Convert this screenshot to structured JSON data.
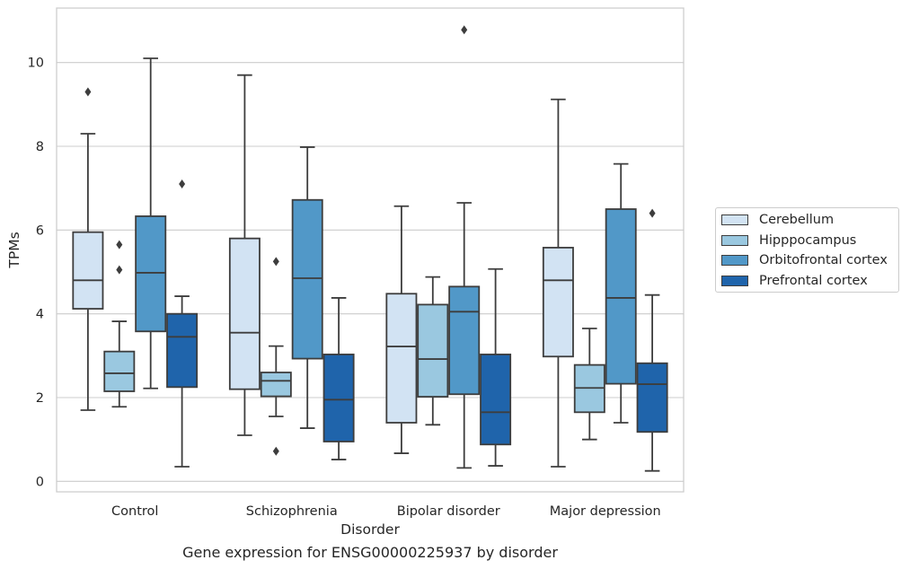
{
  "chart_data": {
    "type": "boxplot",
    "title": "Gene expression for ENSG00000225937 by disorder",
    "xlabel": "Disorder",
    "ylabel": "TPMs",
    "ylim": [
      -0.25,
      11.3
    ],
    "yticks": [
      0,
      2,
      4,
      6,
      8,
      10
    ],
    "grid": true,
    "legend_position": "right",
    "categories": [
      "Control",
      "Schizophrenia",
      "Bipolar disorder",
      "Major depression"
    ],
    "series": [
      {
        "name": "Cerebellum",
        "color": "#d2e3f3",
        "boxes": [
          {
            "whislo": 1.7,
            "q1": 4.12,
            "med": 4.8,
            "q3": 5.95,
            "whishi": 8.3,
            "fliers": [
              9.3
            ]
          },
          {
            "whislo": 1.1,
            "q1": 2.2,
            "med": 3.55,
            "q3": 5.8,
            "whishi": 9.7,
            "fliers": []
          },
          {
            "whislo": 0.67,
            "q1": 1.4,
            "med": 3.22,
            "q3": 4.48,
            "whishi": 6.57,
            "fliers": []
          },
          {
            "whislo": 0.35,
            "q1": 2.98,
            "med": 4.8,
            "q3": 5.58,
            "whishi": 9.12,
            "fliers": []
          }
        ]
      },
      {
        "name": "Hipppocampus",
        "color": "#9ac8e0",
        "boxes": [
          {
            "whislo": 1.78,
            "q1": 2.15,
            "med": 2.58,
            "q3": 3.1,
            "whishi": 3.82,
            "fliers": [
              5.65,
              5.05
            ]
          },
          {
            "whislo": 1.55,
            "q1": 2.03,
            "med": 2.4,
            "q3": 2.6,
            "whishi": 3.23,
            "fliers": [
              5.25,
              0.72
            ]
          },
          {
            "whislo": 1.35,
            "q1": 2.02,
            "med": 2.92,
            "q3": 4.22,
            "whishi": 4.88,
            "fliers": []
          },
          {
            "whislo": 1.0,
            "q1": 1.65,
            "med": 2.23,
            "q3": 2.78,
            "whishi": 3.65,
            "fliers": []
          }
        ]
      },
      {
        "name": "Orbitofrontal cortex",
        "color": "#5198c8",
        "boxes": [
          {
            "whislo": 2.22,
            "q1": 3.58,
            "med": 4.98,
            "q3": 6.33,
            "whishi": 10.1,
            "fliers": []
          },
          {
            "whislo": 1.27,
            "q1": 2.93,
            "med": 4.85,
            "q3": 6.72,
            "whishi": 7.98,
            "fliers": []
          },
          {
            "whislo": 0.32,
            "q1": 2.08,
            "med": 4.05,
            "q3": 4.65,
            "whishi": 6.65,
            "fliers": [
              10.78
            ]
          },
          {
            "whislo": 1.4,
            "q1": 2.33,
            "med": 4.38,
            "q3": 6.5,
            "whishi": 7.58,
            "fliers": []
          }
        ]
      },
      {
        "name": "Prefrontal cortex",
        "color": "#1f64ab",
        "boxes": [
          {
            "whislo": 0.35,
            "q1": 2.25,
            "med": 3.45,
            "q3": 4.0,
            "whishi": 4.42,
            "fliers": [
              7.1
            ]
          },
          {
            "whislo": 0.52,
            "q1": 0.95,
            "med": 1.95,
            "q3": 3.03,
            "whishi": 4.38,
            "fliers": []
          },
          {
            "whislo": 0.37,
            "q1": 0.88,
            "med": 1.65,
            "q3": 3.03,
            "whishi": 5.07,
            "fliers": []
          },
          {
            "whislo": 0.25,
            "q1": 1.18,
            "med": 2.32,
            "q3": 2.82,
            "whishi": 4.45,
            "fliers": [
              6.4
            ]
          }
        ]
      }
    ]
  }
}
